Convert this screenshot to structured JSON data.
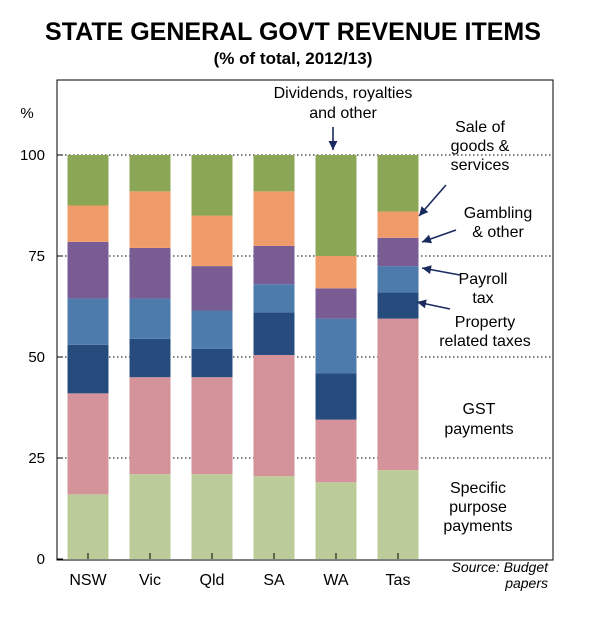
{
  "chart_data": {
    "type": "bar",
    "stacked": true,
    "title": "STATE GENERAL GOVT REVENUE ITEMS",
    "subtitle": "(% of total, 2012/13)",
    "ylabel": "%",
    "ylim": [
      0,
      100
    ],
    "yticks": [
      0,
      25,
      50,
      75,
      100
    ],
    "grid": "dotted horizontal at ticks",
    "categories": [
      "NSW",
      "Vic",
      "Qld",
      "SA",
      "WA",
      "Tas"
    ],
    "series": [
      {
        "name": "Specific purpose payments",
        "color": "#bccc98",
        "values": [
          16,
          21,
          21,
          20.5,
          19,
          22
        ]
      },
      {
        "name": "GST payments",
        "color": "#d4939a",
        "values": [
          25,
          24,
          24,
          30,
          15.5,
          37.5
        ]
      },
      {
        "name": "Property related taxes",
        "color": "#254c7c",
        "values": [
          12,
          9.5,
          7,
          10.5,
          11.5,
          6.5
        ]
      },
      {
        "name": "Payroll tax",
        "color": "#4d7bab",
        "values": [
          11.5,
          10,
          9.5,
          7,
          13.5,
          6.5
        ]
      },
      {
        "name": "Gambling & other",
        "color": "#7a5c95",
        "values": [
          14,
          12.5,
          11,
          9.5,
          7.5,
          7
        ]
      },
      {
        "name": "Sale of goods & services",
        "color": "#ef9c6a",
        "values": [
          9,
          14,
          12.5,
          13.5,
          8,
          6.5
        ]
      },
      {
        "name": "Dividends, royalties and other",
        "color": "#8ba654",
        "values": [
          12.5,
          9,
          15,
          9,
          25,
          14
        ]
      }
    ],
    "annotations": [
      {
        "id": "dividends",
        "lines": [
          "Dividends, royalties",
          "and other"
        ]
      },
      {
        "id": "sale",
        "lines": [
          "Sale of",
          "goods &",
          "services"
        ]
      },
      {
        "id": "gambling",
        "lines": [
          "Gambling",
          "& other"
        ]
      },
      {
        "id": "payroll",
        "lines": [
          "Payroll",
          "tax"
        ]
      },
      {
        "id": "property",
        "lines": [
          "Property",
          "related taxes"
        ]
      },
      {
        "id": "gst",
        "lines": [
          "GST",
          "payments"
        ]
      },
      {
        "id": "spp",
        "lines": [
          "Specific",
          "purpose",
          "payments"
        ]
      }
    ],
    "source": [
      "Source: Budget",
      "papers"
    ]
  }
}
